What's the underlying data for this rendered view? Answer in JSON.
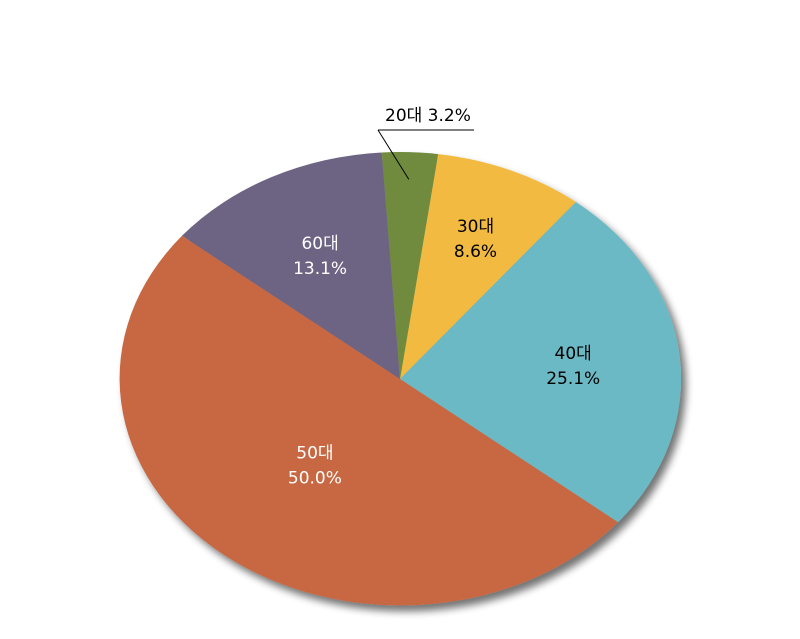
{
  "chart_data": {
    "type": "pie",
    "title": "",
    "slices": [
      {
        "category": "30대",
        "value": 8.6,
        "label": "8.6%",
        "color": "#F2BA3F"
      },
      {
        "category": "40대",
        "value": 25.1,
        "label": "25.1%",
        "color": "#6BB9C4"
      },
      {
        "category": "50대",
        "value": 50.0,
        "label": "50.0%",
        "color": "#C76742"
      },
      {
        "category": "60대",
        "value": 13.1,
        "label": "13.1%",
        "color": "#6D6382"
      },
      {
        "category": "20대",
        "value": 3.2,
        "label": "3.2%",
        "color": "#6F8B3E"
      }
    ],
    "callout_label": "20대 3.2%",
    "label_colors": {
      "30대": "#000000",
      "40대": "#000000",
      "50대": "#ffffff",
      "60대": "#ffffff"
    }
  }
}
